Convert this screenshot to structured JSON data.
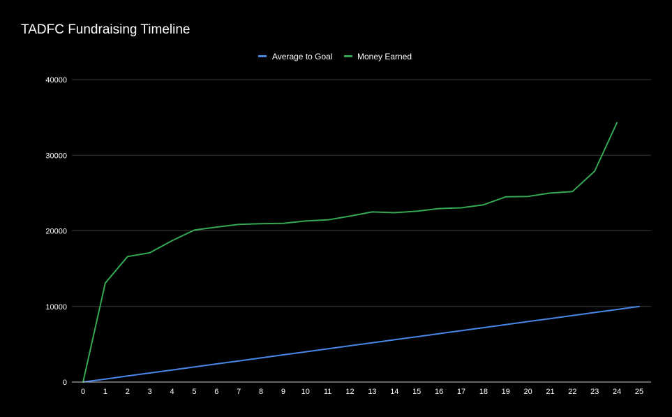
{
  "chart_data": {
    "type": "line",
    "title": "TADFC Fundraising Timeline",
    "xlabel": "",
    "ylabel": "",
    "legend_position": "top-center",
    "grid": true,
    "x": [
      0,
      1,
      2,
      3,
      4,
      5,
      6,
      7,
      8,
      9,
      10,
      11,
      12,
      13,
      14,
      15,
      16,
      17,
      18,
      19,
      20,
      21,
      22,
      23,
      24,
      25
    ],
    "xlim": [
      0,
      25
    ],
    "ylim": [
      0,
      40000
    ],
    "yticks": [
      0,
      10000,
      20000,
      30000,
      40000
    ],
    "series": [
      {
        "name": "Average to Goal",
        "color": "#4a86e8",
        "values": [
          0,
          400,
          800,
          1200,
          1600,
          2000,
          2400,
          2800,
          3200,
          3600,
          4000,
          4400,
          4800,
          5200,
          5600,
          6000,
          6400,
          6800,
          7200,
          7600,
          8000,
          8400,
          8800,
          9200,
          9600,
          10000
        ]
      },
      {
        "name": "Money Earned",
        "color": "#34a853",
        "values": [
          0,
          13100,
          16600,
          17100,
          18700,
          20100,
          20500,
          20850,
          20950,
          21000,
          21300,
          21450,
          21950,
          22500,
          22400,
          22600,
          22950,
          23050,
          23450,
          24500,
          24550,
          25000,
          25200,
          27900,
          34300,
          null
        ]
      }
    ]
  }
}
